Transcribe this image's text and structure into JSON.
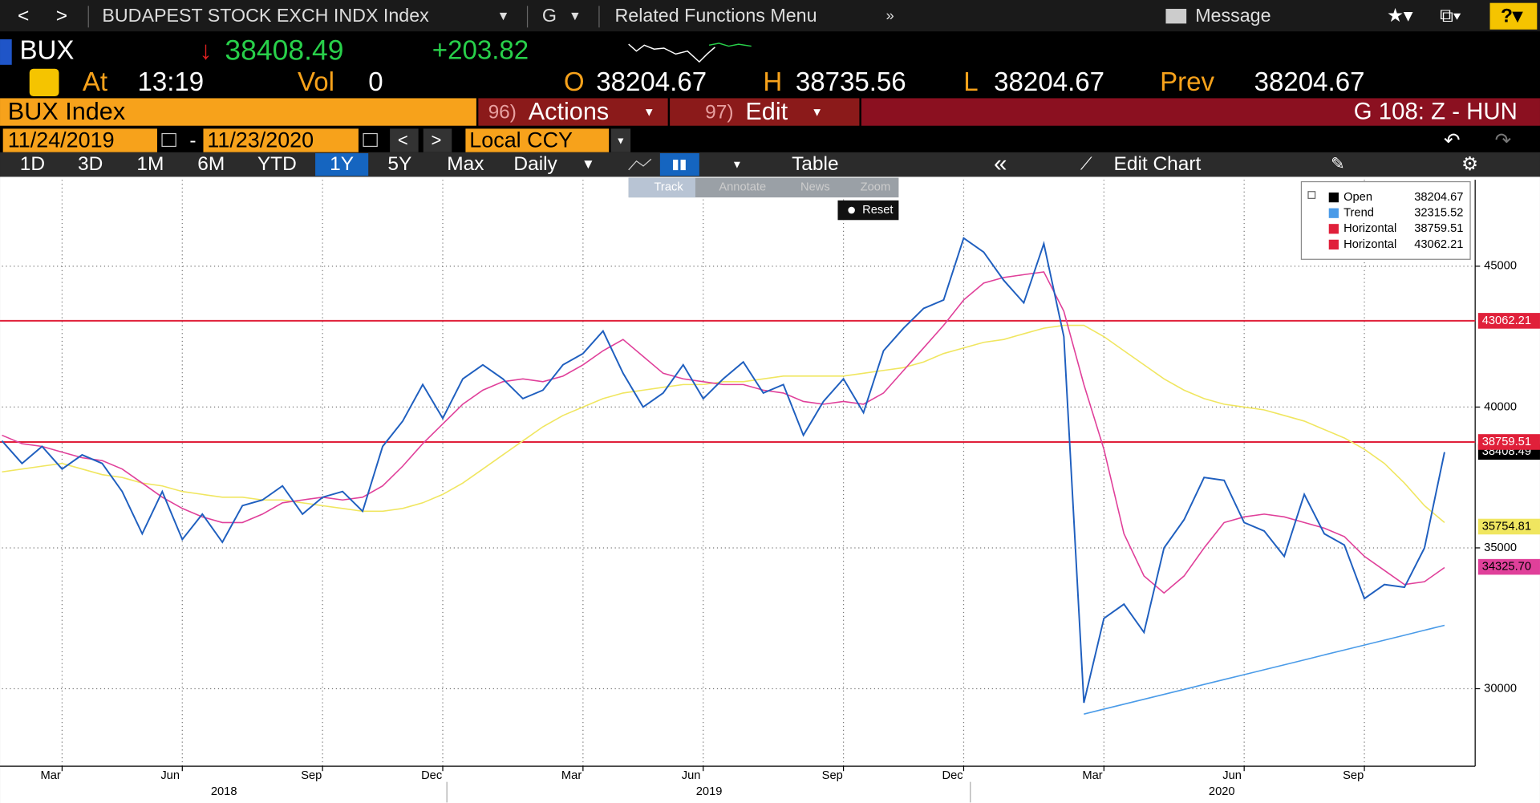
{
  "ui": {
    "nav_title": "BUDAPEST STOCK EXCH INDX Index",
    "nav_g": "G",
    "related": "Related Functions Menu",
    "message": "Message",
    "ticker": "BUX",
    "last": "38408.49",
    "change": "+203.82",
    "at_label": "At",
    "time": "13:19",
    "vol_label": "Vol",
    "vol": "0",
    "open_label": "O",
    "open": "38204.67",
    "high_label": "H",
    "high": "38735.56",
    "low_label": "L",
    "low": "38204.67",
    "prev_label": "Prev",
    "prev": "38204.67",
    "security": "BUX Index",
    "actions_num": "96)",
    "actions": "Actions",
    "edit_num": "97)",
    "edit": "Edit",
    "g_code": "G 108: Z - HUN",
    "start_date": "11/24/2019",
    "end_date": "11/23/2020",
    "currency": "Local CCY",
    "periods": [
      "1D",
      "3D",
      "1M",
      "6M",
      "YTD",
      "1Y",
      "5Y",
      "Max"
    ],
    "active_period": "1Y",
    "frequency": "Daily",
    "table": "Table",
    "edit_chart": "Edit Chart",
    "tools": [
      "Track",
      "Annotate",
      "News",
      "Zoom"
    ],
    "reset": "Reset"
  },
  "chart_data": {
    "type": "line",
    "categories": [
      null,
      null,
      null,
      "Mar",
      null,
      null,
      null,
      null,
      null,
      "Jun",
      null,
      null,
      null,
      null,
      null,
      null,
      "Sep",
      null,
      null,
      null,
      null,
      null,
      "Dec",
      null,
      null,
      null,
      null,
      null,
      null,
      "Mar",
      null,
      null,
      null,
      null,
      null,
      "Jun",
      null,
      null,
      null,
      null,
      null,
      null,
      "Sep",
      null,
      null,
      null,
      null,
      null,
      "Dec",
      null,
      null,
      null,
      null,
      null,
      null,
      "Mar",
      null,
      null,
      null,
      null,
      null,
      null,
      "Jun",
      null,
      null,
      null,
      null,
      null,
      "Sep",
      null,
      null,
      null,
      null
    ],
    "x_group_labels": [
      "2018",
      "2019",
      "2020"
    ],
    "series": [
      {
        "name": "Open",
        "color": "#1f5fbf",
        "legend_value": 38204.67,
        "legend_color": "#000000",
        "values": [
          38800,
          38000,
          38600,
          37800,
          38300,
          38000,
          37000,
          35500,
          37000,
          35300,
          36200,
          35200,
          36500,
          36700,
          37200,
          36200,
          36800,
          37000,
          36300,
          38600,
          39500,
          40800,
          39600,
          41000,
          41500,
          41000,
          40300,
          40600,
          41500,
          41900,
          42700,
          41200,
          40000,
          40500,
          41500,
          40300,
          41000,
          41600,
          40500,
          40800,
          39000,
          40200,
          41000,
          39800,
          42000,
          42800,
          43500,
          43800,
          46000,
          45500,
          44500,
          43700,
          45800,
          42500,
          29500,
          32500,
          33000,
          32000,
          35000,
          36000,
          37500,
          37400,
          35900,
          35600,
          34700,
          36900,
          35500,
          35100,
          33200,
          33700,
          33600,
          35000,
          38400
        ]
      },
      {
        "color": "#e0409a",
        "last_value": {
          "value": 34325.7,
          "label": "34325.70"
        },
        "values": [
          39000,
          38700,
          38600,
          38400,
          38200,
          38100,
          37800,
          37300,
          36800,
          36400,
          36100,
          35900,
          35900,
          36200,
          36600,
          36700,
          36800,
          36700,
          36800,
          37200,
          37900,
          38700,
          39400,
          40100,
          40600,
          40900,
          41000,
          40900,
          41100,
          41500,
          42000,
          42400,
          41800,
          41200,
          41000,
          40900,
          40800,
          40800,
          40600,
          40500,
          40200,
          40100,
          40200,
          40100,
          40500,
          41300,
          42100,
          42900,
          43800,
          44400,
          44600,
          44700,
          44800,
          43400,
          40800,
          38500,
          35500,
          34000,
          33400,
          34000,
          35000,
          35900,
          36100,
          36200,
          36100,
          35900,
          35700,
          35400,
          34700,
          34200,
          33700,
          33800,
          34300
        ]
      },
      {
        "color": "#f0e660",
        "last_value": 35754.81,
        "values": [
          37700,
          37800,
          37900,
          38000,
          37800,
          37600,
          37500,
          37300,
          37200,
          37000,
          36900,
          36800,
          36800,
          36700,
          36700,
          36600,
          36500,
          36400,
          36300,
          36300,
          36400,
          36600,
          36900,
          37300,
          37800,
          38300,
          38800,
          39300,
          39700,
          40000,
          40300,
          40500,
          40600,
          40700,
          40800,
          40800,
          40900,
          40900,
          41000,
          41100,
          41100,
          41100,
          41100,
          41200,
          41300,
          41400,
          41600,
          41900,
          42100,
          42300,
          42400,
          42600,
          42800,
          42900,
          42900,
          42500,
          42000,
          41500,
          41000,
          40600,
          40300,
          40100,
          40000,
          39900,
          39700,
          39500,
          39200,
          38900,
          38500,
          38000,
          37300,
          36500,
          35900
        ]
      },
      {
        "name": "Trend",
        "color": "#4a9be8",
        "legend_value": 32315.52,
        "values": [
          null,
          null,
          null,
          null,
          null,
          null,
          null,
          null,
          null,
          null,
          null,
          null,
          null,
          null,
          null,
          null,
          null,
          null,
          null,
          null,
          null,
          null,
          null,
          null,
          null,
          null,
          null,
          null,
          null,
          null,
          null,
          null,
          null,
          null,
          null,
          null,
          null,
          null,
          null,
          null,
          null,
          null,
          null,
          null,
          null,
          null,
          null,
          null,
          null,
          null,
          null,
          null,
          null,
          null,
          29100,
          29275,
          29450,
          29625,
          29800,
          29975,
          30150,
          30325,
          30500,
          30675,
          30850,
          31025,
          31200,
          31375,
          31550,
          31725,
          31900,
          32075,
          32250
        ]
      }
    ],
    "hlines": [
      {
        "name": "Horizontal",
        "value": 38759.51,
        "color": "#e0203a"
      },
      {
        "name": "Horizontal",
        "value": 43062.21,
        "color": "#e0203a"
      }
    ],
    "last_price": 38408.49,
    "ylim": [
      27250,
      48070
    ],
    "yticks": [
      30000,
      35000,
      40000,
      45000
    ],
    "grid": true
  }
}
